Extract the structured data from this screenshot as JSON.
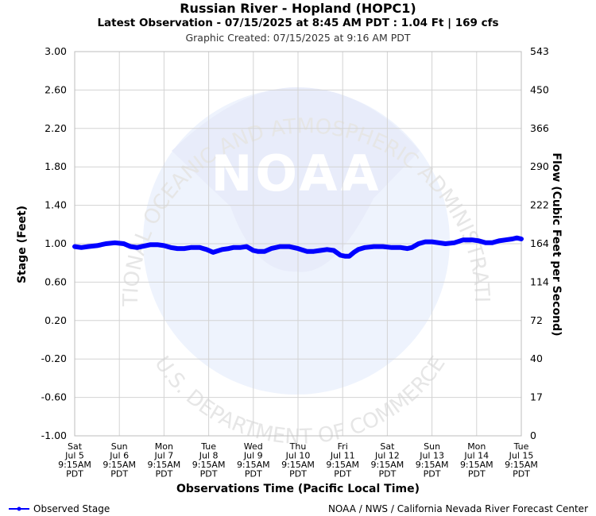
{
  "header": {
    "title": "Russian River - Hopland (HOPC1)",
    "latest": "Latest Observation - 07/15/2025 at 8:45 AM PDT : 1.04 Ft | 169 cfs",
    "created": "Graphic Created: 07/15/2025 at 9:16 AM PDT"
  },
  "watermark": {
    "logo_text": "NOAA",
    "ring_top": "NATIONAL OCEANIC AND ATMOSPHERIC ADMINISTRATION",
    "ring_bottom": "U.S. DEPARTMENT OF COMMERCE"
  },
  "footer": {
    "legend_label": "Observed Stage",
    "credit": "NOAA / NWS / California Nevada River Forecast Center"
  },
  "colors": {
    "series": "#0000ff",
    "grid": "#d3d3d3",
    "watermark": "#e8ecfa"
  },
  "chart_data": {
    "type": "line",
    "xlabel": "Observations Time (Pacific Local Time)",
    "ylabel": "Stage (Feet)",
    "y2label": "Flow (Cubic Feet per Second)",
    "ylim": [
      -1.0,
      3.0
    ],
    "yticks": [
      "-1.00",
      "-0.60",
      "-0.20",
      "0.20",
      "0.60",
      "1.00",
      "1.40",
      "1.80",
      "2.20",
      "2.60",
      "3.00"
    ],
    "y2ticks": [
      "0",
      "17",
      "40",
      "72",
      "114",
      "164",
      "222",
      "290",
      "366",
      "450",
      "543"
    ],
    "grid": true,
    "xlim": [
      0,
      10
    ],
    "xticks": [
      {
        "day": "Sat",
        "date": "Jul 5",
        "time": "9:15AM",
        "tz": "PDT"
      },
      {
        "day": "Sun",
        "date": "Jul 6",
        "time": "9:15AM",
        "tz": "PDT"
      },
      {
        "day": "Mon",
        "date": "Jul 7",
        "time": "9:15AM",
        "tz": "PDT"
      },
      {
        "day": "Tue",
        "date": "Jul 8",
        "time": "9:15AM",
        "tz": "PDT"
      },
      {
        "day": "Wed",
        "date": "Jul 9",
        "time": "9:15AM",
        "tz": "PDT"
      },
      {
        "day": "Thu",
        "date": "Jul 10",
        "time": "9:15AM",
        "tz": "PDT"
      },
      {
        "day": "Fri",
        "date": "Jul 11",
        "time": "9:15AM",
        "tz": "PDT"
      },
      {
        "day": "Sat",
        "date": "Jul 12",
        "time": "9:15AM",
        "tz": "PDT"
      },
      {
        "day": "Sun",
        "date": "Jul 13",
        "time": "9:15AM",
        "tz": "PDT"
      },
      {
        "day": "Mon",
        "date": "Jul 14",
        "time": "9:15AM",
        "tz": "PDT"
      },
      {
        "day": "Tue",
        "date": "Jul 15",
        "time": "9:15AM",
        "tz": "PDT"
      }
    ],
    "series": [
      {
        "name": "Observed Stage",
        "x": [
          0,
          0.15,
          0.3,
          0.5,
          0.7,
          0.9,
          1.1,
          1.25,
          1.4,
          1.5,
          1.7,
          1.85,
          2.0,
          2.15,
          2.3,
          2.45,
          2.6,
          2.8,
          2.95,
          3.1,
          3.3,
          3.45,
          3.55,
          3.7,
          3.85,
          4.0,
          4.1,
          4.25,
          4.4,
          4.6,
          4.8,
          5.0,
          5.2,
          5.35,
          5.5,
          5.65,
          5.8,
          5.95,
          6.05,
          6.15,
          6.25,
          6.35,
          6.5,
          6.7,
          6.9,
          7.1,
          7.3,
          7.45,
          7.55,
          7.7,
          7.85,
          8.0,
          8.15,
          8.3,
          8.5,
          8.7,
          8.9,
          9.05,
          9.2,
          9.35,
          9.5,
          9.65,
          9.8,
          9.9,
          10.0
        ],
        "y": [
          0.97,
          0.96,
          0.97,
          0.98,
          1.0,
          1.01,
          1.0,
          0.97,
          0.96,
          0.97,
          0.99,
          0.99,
          0.98,
          0.96,
          0.95,
          0.95,
          0.96,
          0.96,
          0.94,
          0.91,
          0.94,
          0.95,
          0.96,
          0.96,
          0.97,
          0.93,
          0.92,
          0.92,
          0.95,
          0.97,
          0.97,
          0.95,
          0.92,
          0.92,
          0.93,
          0.94,
          0.93,
          0.88,
          0.87,
          0.87,
          0.91,
          0.94,
          0.96,
          0.97,
          0.97,
          0.96,
          0.96,
          0.95,
          0.96,
          1.0,
          1.02,
          1.02,
          1.01,
          1.0,
          1.01,
          1.04,
          1.04,
          1.03,
          1.01,
          1.01,
          1.03,
          1.04,
          1.05,
          1.06,
          1.05
        ]
      }
    ]
  }
}
